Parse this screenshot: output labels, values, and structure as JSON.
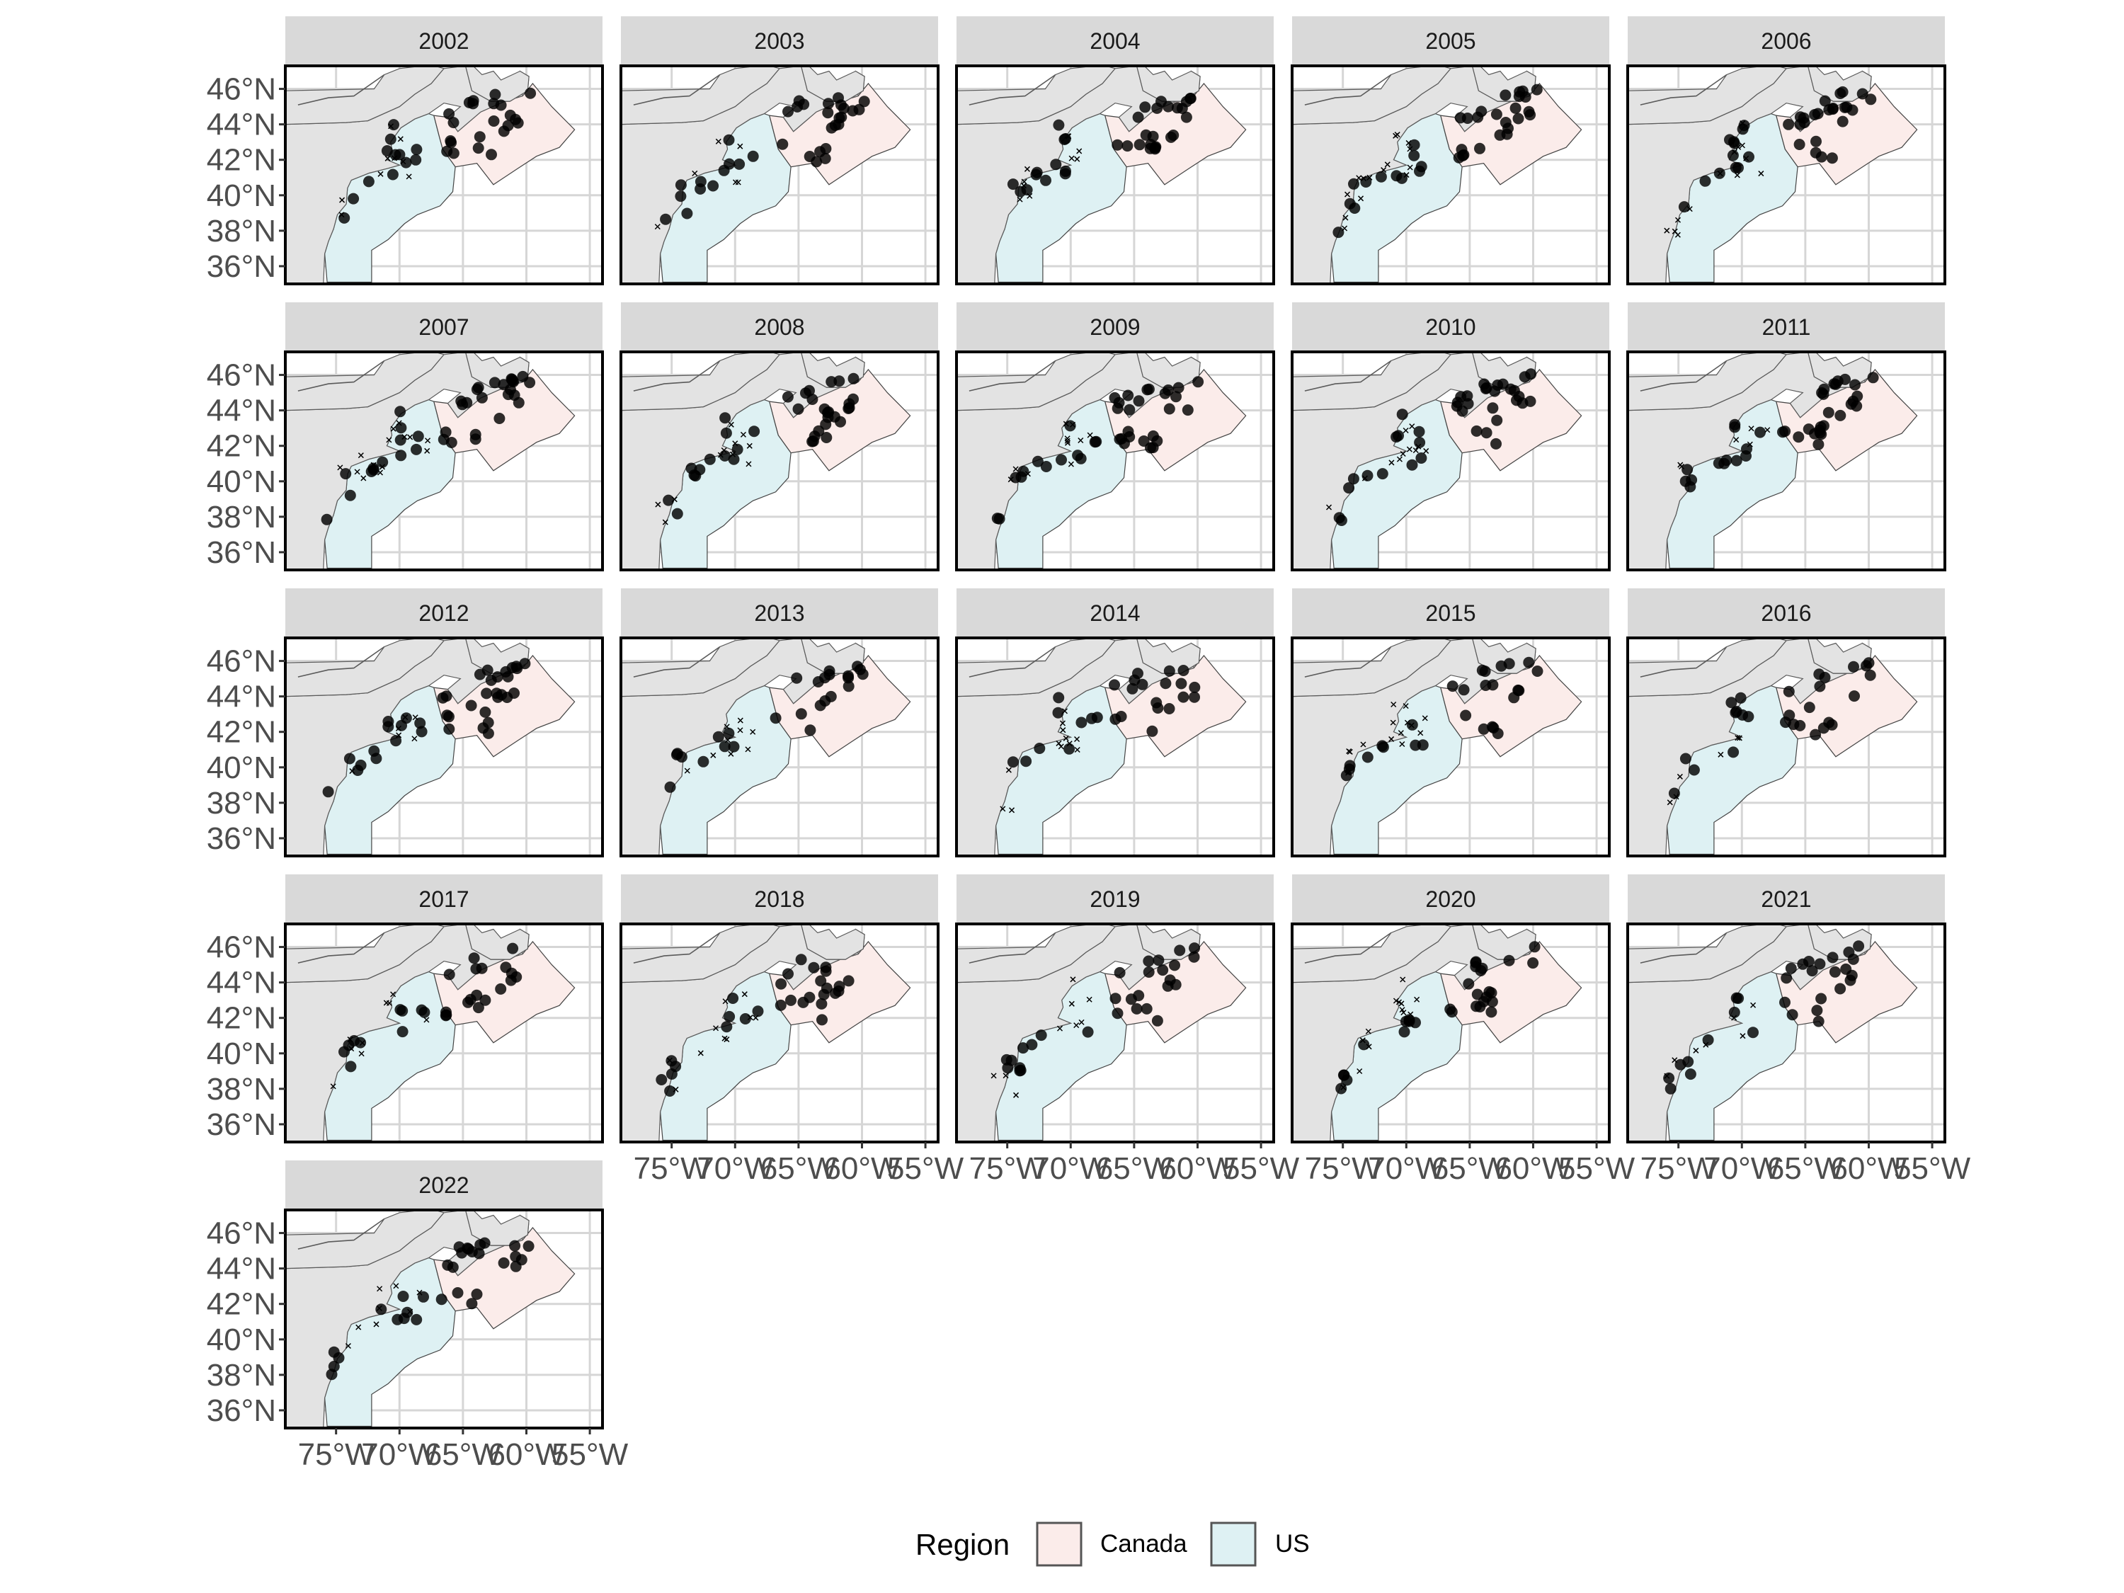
{
  "colors": {
    "canada_fill": "#fbecea",
    "us_fill": "#def1f3",
    "land": "#e3e3e3",
    "grid": "#d6d6d6",
    "strip": "#d9d9d9",
    "points": "#000000"
  },
  "chart_data": {
    "type": "scatter",
    "layout": "faceted map, 5 columns",
    "facets": [
      "2002",
      "2003",
      "2004",
      "2005",
      "2006",
      "2007",
      "2008",
      "2009",
      "2010",
      "2011",
      "2012",
      "2013",
      "2014",
      "2015",
      "2016",
      "2017",
      "2018",
      "2019",
      "2020",
      "2021",
      "2022"
    ],
    "xlim": [
      -79,
      -54
    ],
    "ylim": [
      35,
      47.3
    ],
    "x_ticks": [
      -75,
      -70,
      -65,
      -60,
      -55
    ],
    "y_ticks": [
      36,
      38,
      40,
      42,
      44,
      46
    ],
    "x_tick_labels": [
      "75°W",
      "70°W",
      "65°W",
      "60°W",
      "55°W"
    ],
    "y_tick_labels": [
      "36°N",
      "38°N",
      "40°N",
      "42°N",
      "44°N",
      "46°N"
    ],
    "grid": true,
    "region_shapes": [
      "Canada",
      "US"
    ],
    "point_shapes": [
      "filled circle",
      "cross"
    ],
    "legend": {
      "title": "Region",
      "position": "bottom",
      "entries": [
        {
          "label": "Canada",
          "color": "#fbecea"
        },
        {
          "label": "US",
          "color": "#def1f3"
        }
      ]
    }
  }
}
